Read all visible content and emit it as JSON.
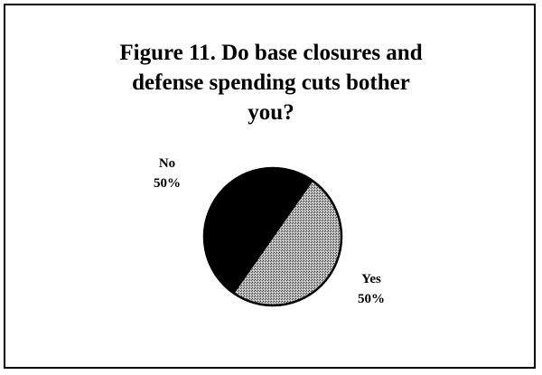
{
  "chart_data": {
    "type": "pie",
    "title": "Figure 11.  Do base closures and defense spending cuts bother you?",
    "title_lines": [
      "Figure 11.  Do base closures and",
      "defense spending cuts bother",
      "you?"
    ],
    "slices": [
      {
        "label": "No",
        "value": 50,
        "value_label": "50%",
        "color": "#000000",
        "fill": "solid"
      },
      {
        "label": "Yes",
        "value": 50,
        "value_label": "50%",
        "color": "#9a9a9a",
        "fill": "stipple"
      }
    ],
    "legend": "none"
  }
}
